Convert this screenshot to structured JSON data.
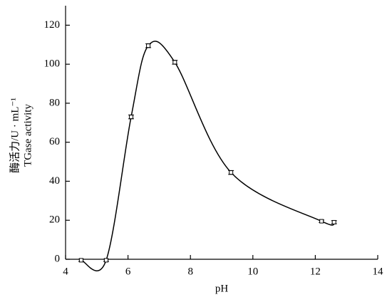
{
  "chart_data": {
    "type": "line",
    "x_label": "pH",
    "y_label": [
      "酶活力/U · mL⁻¹",
      "TGase activity"
    ],
    "x": [
      4.5,
      5.3,
      6.1,
      6.65,
      7.5,
      9.3,
      12.2,
      12.6
    ],
    "series": [
      {
        "color": "#000000",
        "values": [
          -0.5,
          -0.5,
          73,
          109.5,
          101,
          44.5,
          19.5,
          19
        ],
        "errors": [
          0.6,
          0.6,
          1,
          1,
          1,
          1,
          0.6,
          0.8
        ]
      }
    ],
    "xlim": [
      4,
      14
    ],
    "xticks": [
      4,
      6,
      8,
      10,
      12,
      14
    ],
    "ylim": [
      0,
      130
    ],
    "yticks": [
      0,
      20,
      40,
      60,
      80,
      100,
      120
    ],
    "grid": false
  }
}
